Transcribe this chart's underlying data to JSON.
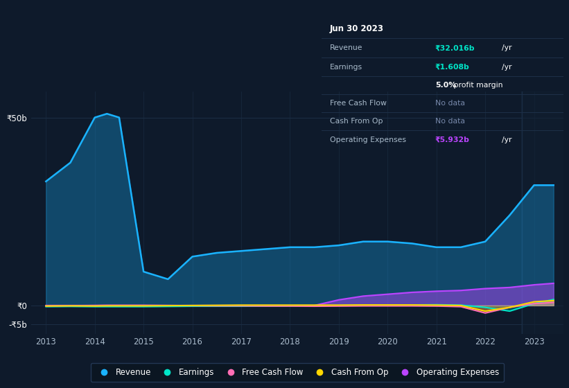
{
  "bg_color": "#0e1a2b",
  "plot_bg_color": "#0e1a2b",
  "grid_color": "#1c2e45",
  "years": [
    2013,
    2013.5,
    2014,
    2014.25,
    2014.5,
    2015,
    2015.5,
    2016,
    2016.5,
    2017,
    2017.5,
    2018,
    2018.5,
    2019,
    2019.5,
    2020,
    2020.5,
    2021,
    2021.5,
    2022,
    2022.5,
    2023,
    2023.4
  ],
  "revenue": [
    33,
    38,
    50,
    51,
    50,
    9,
    7,
    13,
    14,
    14.5,
    15,
    15.5,
    15.5,
    16,
    17,
    17,
    16.5,
    15.5,
    15.5,
    17,
    24,
    32,
    32
  ],
  "earnings": [
    -0.3,
    -0.25,
    -0.3,
    -0.3,
    -0.3,
    -0.3,
    -0.25,
    -0.2,
    -0.2,
    -0.2,
    -0.15,
    -0.1,
    -0.05,
    0.0,
    0.05,
    0.1,
    0.15,
    0.2,
    0.1,
    -0.5,
    -1.5,
    0.5,
    1.6
  ],
  "free_cash_flow": [
    -0.1,
    -0.05,
    0.0,
    0.05,
    0.05,
    0.05,
    0.0,
    -0.05,
    -0.1,
    -0.1,
    -0.15,
    -0.15,
    -0.2,
    -0.15,
    -0.1,
    -0.1,
    -0.1,
    -0.15,
    -0.3,
    -2.0,
    -0.5,
    0.5,
    0.8
  ],
  "cash_from_op": [
    -0.15,
    -0.1,
    -0.15,
    -0.1,
    -0.1,
    -0.1,
    -0.05,
    0.0,
    0.05,
    0.1,
    0.1,
    0.1,
    0.1,
    0.1,
    0.15,
    0.15,
    0.15,
    0.1,
    0.0,
    -1.5,
    -0.5,
    1.0,
    1.3
  ],
  "op_expenses": [
    0.0,
    0.0,
    0.0,
    0.0,
    0.0,
    0.0,
    0.0,
    0.0,
    0.0,
    0.0,
    0.0,
    0.0,
    0.0,
    1.5,
    2.5,
    3.0,
    3.5,
    3.8,
    4.0,
    4.5,
    4.8,
    5.5,
    5.9
  ],
  "revenue_color": "#1ab3ff",
  "earnings_color": "#00e5c8",
  "free_cash_flow_color": "#ff6eb4",
  "cash_from_op_color": "#ffd700",
  "op_expenses_color": "#bb44ff",
  "fill_alpha": 0.3,
  "ylim_min": -7.5,
  "ylim_max": 57,
  "y_ticks": [
    -5,
    0,
    50
  ],
  "y_tick_labels": [
    "-₹5b",
    "₹0",
    "₹50b"
  ],
  "x_ticks": [
    2013,
    2014,
    2015,
    2016,
    2017,
    2018,
    2019,
    2020,
    2021,
    2022,
    2023
  ],
  "vline_x": 2022.75
}
